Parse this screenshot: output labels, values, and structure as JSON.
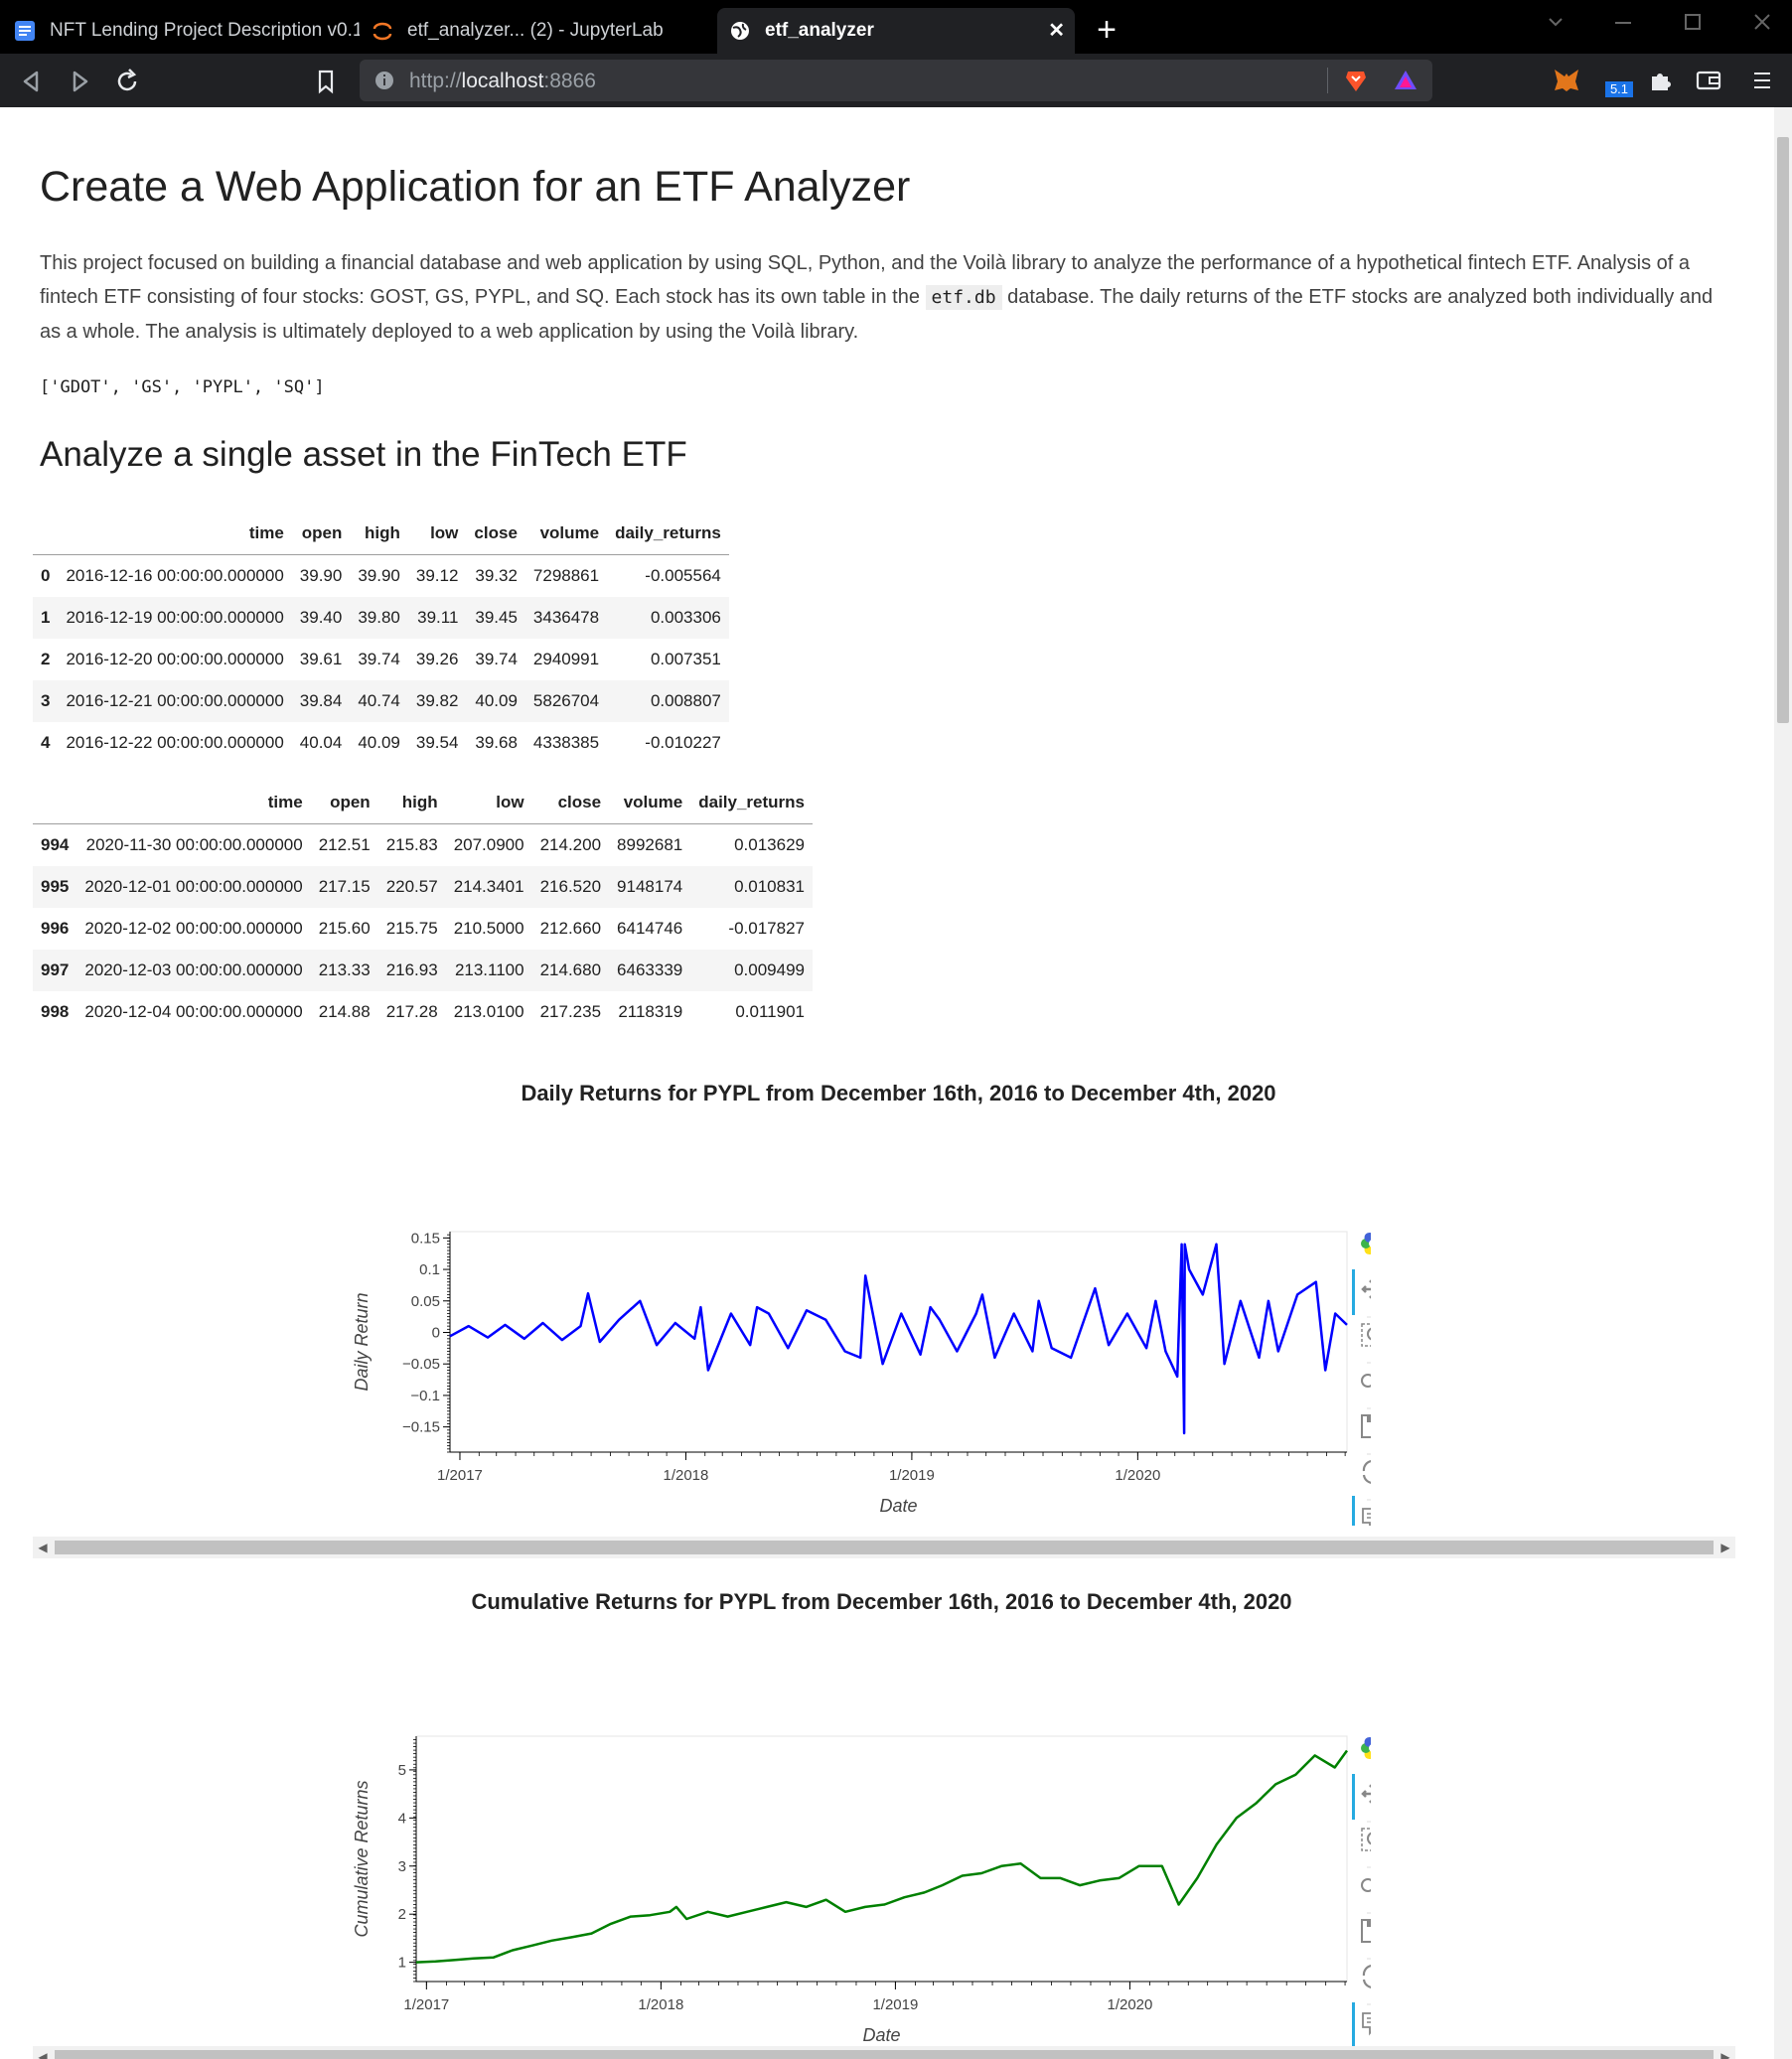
{
  "browser": {
    "tabs": [
      {
        "label": "NFT Lending Project Description v0.1 |",
        "icon": "document-icon",
        "active": false
      },
      {
        "label": "etf_analyzer... (2) - JupyterLab",
        "icon": "jupyter-icon",
        "active": false
      },
      {
        "label": "etf_analyzer",
        "icon": "globe-icon",
        "active": true
      }
    ],
    "new_tab_label": "+",
    "close_label": "✕",
    "address": {
      "scheme": "http://",
      "host": "localhost",
      "port": ":8866"
    },
    "badge_count": "5.1"
  },
  "page": {
    "title": "Create a Web Application for an ETF Analyzer",
    "intro_part1": "This project focused on building a financial database and web application by using SQL, Python, and the Voilà library to analyze the performance of a hypothetical fintech ETF. Analysis of a fintech ETF consisting of four stocks: GOST, GS, PYPL, and SQ. Each stock has its own table in the ",
    "intro_code": "etf.db",
    "intro_part2": " database. The daily returns of the ETF stocks are analyzed both individually and as a whole. The analysis is ultimately deployed to a web application by using the Voilà library.",
    "ticker_output": "['GDOT', 'GS', 'PYPL', 'SQ']",
    "section_title": "Analyze a single asset in the FinTech ETF"
  },
  "head_table": {
    "columns": [
      "",
      "time",
      "open",
      "high",
      "low",
      "close",
      "volume",
      "daily_returns"
    ],
    "rows": [
      [
        "0",
        "2016-12-16 00:00:00.000000",
        "39.90",
        "39.90",
        "39.12",
        "39.32",
        "7298861",
        "-0.005564"
      ],
      [
        "1",
        "2016-12-19 00:00:00.000000",
        "39.40",
        "39.80",
        "39.11",
        "39.45",
        "3436478",
        "0.003306"
      ],
      [
        "2",
        "2016-12-20 00:00:00.000000",
        "39.61",
        "39.74",
        "39.26",
        "39.74",
        "2940991",
        "0.007351"
      ],
      [
        "3",
        "2016-12-21 00:00:00.000000",
        "39.84",
        "40.74",
        "39.82",
        "40.09",
        "5826704",
        "0.008807"
      ],
      [
        "4",
        "2016-12-22 00:00:00.000000",
        "40.04",
        "40.09",
        "39.54",
        "39.68",
        "4338385",
        "-0.010227"
      ]
    ]
  },
  "tail_table": {
    "columns": [
      "",
      "time",
      "open",
      "high",
      "low",
      "close",
      "volume",
      "daily_returns"
    ],
    "rows": [
      [
        "994",
        "2020-11-30 00:00:00.000000",
        "212.51",
        "215.83",
        "207.0900",
        "214.200",
        "8992681",
        "0.013629"
      ],
      [
        "995",
        "2020-12-01 00:00:00.000000",
        "217.15",
        "220.57",
        "214.3401",
        "216.520",
        "9148174",
        "0.010831"
      ],
      [
        "996",
        "2020-12-02 00:00:00.000000",
        "215.60",
        "215.75",
        "210.5000",
        "212.660",
        "6414746",
        "-0.017827"
      ],
      [
        "997",
        "2020-12-03 00:00:00.000000",
        "213.33",
        "216.93",
        "213.1100",
        "214.680",
        "6463339",
        "0.009499"
      ],
      [
        "998",
        "2020-12-04 00:00:00.000000",
        "214.88",
        "217.28",
        "213.0100",
        "217.235",
        "2118319",
        "0.011901"
      ]
    ]
  },
  "chart_data": [
    {
      "type": "line",
      "title": "Daily Returns for PYPL from December 16th, 2016 to December 4th, 2020",
      "xlabel": "Date",
      "ylabel": "Daily Return",
      "x_range": [
        "2016-12-16",
        "2020-12-04"
      ],
      "ylim": [
        -0.19,
        0.16
      ],
      "y_ticks": [
        0.15,
        0.1,
        0.05,
        0,
        -0.05,
        -0.1,
        -0.15
      ],
      "y_tick_labels": [
        "0.15",
        "0.1",
        "0.05",
        "0",
        "−0.05",
        "−0.1",
        "−0.15"
      ],
      "x_ticks": [
        "2017-01-01",
        "2018-01-01",
        "2019-01-01",
        "2020-01-01"
      ],
      "x_tick_labels": [
        "1/2017",
        "1/2018",
        "1/2019",
        "1/2020"
      ],
      "color": "#0000ff",
      "series": [
        {
          "x": [
            "2016-12-16",
            "2017-01-15",
            "2017-02-15",
            "2017-03-15",
            "2017-04-15",
            "2017-05-15",
            "2017-06-15",
            "2017-07-15",
            "2017-07-27",
            "2017-08-15",
            "2017-09-15",
            "2017-10-19",
            "2017-11-15",
            "2017-12-15",
            "2018-01-15",
            "2018-01-25",
            "2018-02-06",
            "2018-03-15",
            "2018-04-15",
            "2018-04-26",
            "2018-05-15",
            "2018-06-15",
            "2018-07-15",
            "2018-08-15",
            "2018-09-15",
            "2018-10-10",
            "2018-10-18",
            "2018-11-15",
            "2018-12-15",
            "2019-01-15",
            "2019-01-31",
            "2019-02-15",
            "2019-03-15",
            "2019-04-15",
            "2019-04-25",
            "2019-05-15",
            "2019-06-15",
            "2019-07-15",
            "2019-07-25",
            "2019-08-15",
            "2019-09-15",
            "2019-10-24",
            "2019-11-15",
            "2019-12-15",
            "2020-01-15",
            "2020-01-30",
            "2020-02-15",
            "2020-03-05",
            "2020-03-12",
            "2020-03-16",
            "2020-03-17",
            "2020-03-24",
            "2020-04-15",
            "2020-05-07",
            "2020-05-20",
            "2020-06-15",
            "2020-07-15",
            "2020-07-30",
            "2020-08-15",
            "2020-09-15",
            "2020-10-15",
            "2020-10-30",
            "2020-11-15",
            "2020-12-04"
          ],
          "y": [
            -0.006,
            0.01,
            -0.008,
            0.012,
            -0.01,
            0.015,
            -0.012,
            0.01,
            0.062,
            -0.015,
            0.02,
            0.05,
            -0.02,
            0.015,
            -0.01,
            0.04,
            -0.06,
            0.03,
            -0.02,
            0.04,
            0.03,
            -0.025,
            0.035,
            0.02,
            -0.03,
            -0.04,
            0.09,
            -0.05,
            0.03,
            -0.035,
            0.04,
            0.02,
            -0.03,
            0.03,
            0.06,
            -0.04,
            0.03,
            -0.03,
            0.05,
            -0.025,
            -0.04,
            0.07,
            -0.02,
            0.03,
            -0.025,
            0.05,
            -0.03,
            -0.07,
            0.14,
            -0.16,
            0.14,
            0.1,
            0.06,
            0.14,
            -0.05,
            0.05,
            -0.04,
            0.05,
            -0.03,
            0.06,
            0.08,
            -0.06,
            0.03,
            0.012
          ]
        }
      ]
    },
    {
      "type": "line",
      "title": "Cumulative Returns for PYPL from December 16th, 2016 to December 4th, 2020",
      "xlabel": "Date",
      "ylabel": "Cumulative Returns",
      "x_range": [
        "2016-12-16",
        "2020-12-04"
      ],
      "ylim": [
        0.6,
        5.7
      ],
      "y_ticks": [
        1,
        2,
        3,
        4,
        5
      ],
      "y_tick_labels": [
        "1",
        "2",
        "3",
        "4",
        "5"
      ],
      "x_ticks": [
        "2017-01-01",
        "2018-01-01",
        "2019-01-01",
        "2020-01-01"
      ],
      "x_tick_labels": [
        "1/2017",
        "1/2018",
        "1/2019",
        "1/2020"
      ],
      "color": "#008000",
      "series": [
        {
          "x": [
            "2016-12-16",
            "2017-01-15",
            "2017-02-15",
            "2017-03-15",
            "2017-04-15",
            "2017-05-15",
            "2017-06-15",
            "2017-07-15",
            "2017-08-15",
            "2017-09-15",
            "2017-10-15",
            "2017-11-15",
            "2017-12-15",
            "2018-01-15",
            "2018-01-25",
            "2018-02-10",
            "2018-03-15",
            "2018-04-15",
            "2018-05-15",
            "2018-06-15",
            "2018-07-15",
            "2018-08-15",
            "2018-09-15",
            "2018-10-15",
            "2018-11-15",
            "2018-12-15",
            "2019-01-15",
            "2019-02-15",
            "2019-03-15",
            "2019-04-15",
            "2019-05-15",
            "2019-06-15",
            "2019-07-15",
            "2019-08-15",
            "2019-09-15",
            "2019-10-15",
            "2019-11-15",
            "2019-12-15",
            "2020-01-15",
            "2020-02-20",
            "2020-03-17",
            "2020-04-15",
            "2020-05-15",
            "2020-06-15",
            "2020-07-15",
            "2020-08-15",
            "2020-09-15",
            "2020-10-15",
            "2020-11-15",
            "2020-12-04"
          ],
          "y": [
            1.0,
            1.02,
            1.05,
            1.08,
            1.1,
            1.25,
            1.35,
            1.45,
            1.52,
            1.6,
            1.8,
            1.95,
            1.98,
            2.05,
            2.15,
            1.9,
            2.05,
            1.95,
            2.05,
            2.15,
            2.25,
            2.15,
            2.3,
            2.05,
            2.15,
            2.2,
            2.35,
            2.45,
            2.6,
            2.8,
            2.85,
            3.0,
            3.05,
            2.75,
            2.75,
            2.6,
            2.7,
            2.75,
            3.0,
            3.0,
            2.2,
            2.75,
            3.45,
            4.0,
            4.3,
            4.7,
            4.9,
            5.3,
            5.05,
            5.4
          ]
        }
      ]
    }
  ]
}
